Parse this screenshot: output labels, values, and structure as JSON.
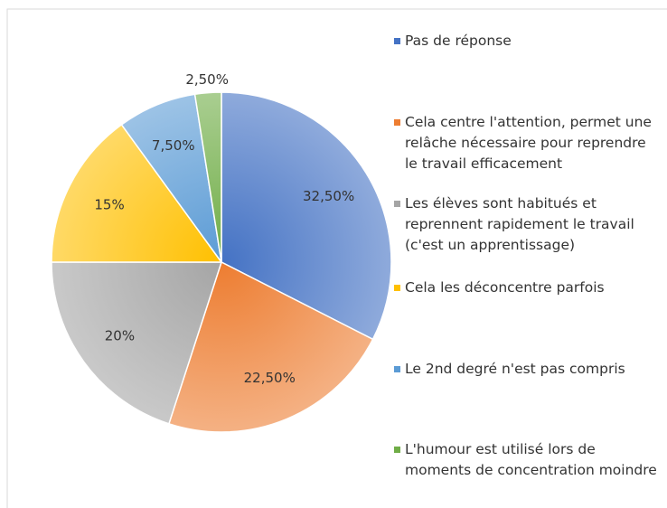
{
  "chart_data": {
    "type": "pie",
    "categories": [
      "Pas de réponse",
      "Cela centre l'attention, permet une relâche nécessaire pour reprendre le travail efficacement",
      "Les élèves sont habitués et reprennent rapidement le travail (c'est un apprentissage)",
      "Cela les déconcentre parfois",
      "Le 2nd degré n'est pas compris",
      "L'humour est utilisé lors de moments de concentration moindre"
    ],
    "values": [
      32.5,
      22.5,
      20,
      15,
      7.5,
      2.5
    ],
    "value_labels": [
      "32,50%",
      "22,50%",
      "20%",
      "15%",
      "7,50%",
      "2,50%"
    ],
    "colors": [
      "#4472c4",
      "#ed7d31",
      "#a5a5a5",
      "#ffc000",
      "#5b9bd5",
      "#70ad47"
    ],
    "legend": "right"
  }
}
